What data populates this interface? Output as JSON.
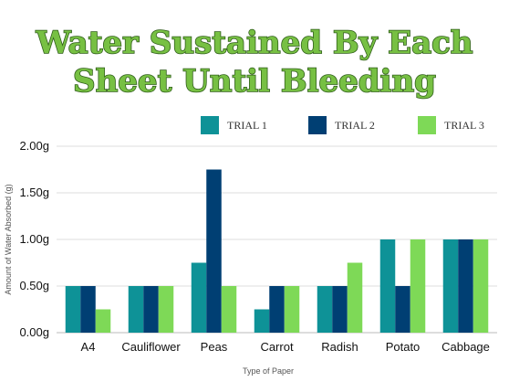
{
  "chart_data": {
    "type": "bar",
    "title_lines": [
      "Water Sustained By Each",
      "Sheet Until Bleeding"
    ],
    "xlabel": "Type of Paper",
    "ylabel": "Amount of Water Absorbed (g)",
    "categories": [
      "A4",
      "Cauliflower",
      "Peas",
      "Carrot",
      "Radish",
      "Potato",
      "Cabbage"
    ],
    "series": [
      {
        "name": "TRIAL 1",
        "color": "#0e9297",
        "values": [
          0.5,
          0.5,
          0.75,
          0.25,
          0.5,
          1.0,
          1.0
        ]
      },
      {
        "name": "TRIAL 2",
        "color": "#003f73",
        "values": [
          0.5,
          0.5,
          1.75,
          0.5,
          0.5,
          0.5,
          1.0
        ]
      },
      {
        "name": "TRIAL 3",
        "color": "#7ed957",
        "values": [
          0.25,
          0.5,
          0.5,
          0.5,
          0.75,
          1.0,
          1.0
        ]
      }
    ],
    "yticks": [
      0,
      0.5,
      1.0,
      1.5,
      2.0
    ],
    "ytick_labels": [
      "0.00g",
      "0.50g",
      "1.00g",
      "1.50g",
      "2.00g"
    ],
    "ylim": [
      0,
      2.0
    ],
    "grid": true,
    "legend_position": "top"
  }
}
